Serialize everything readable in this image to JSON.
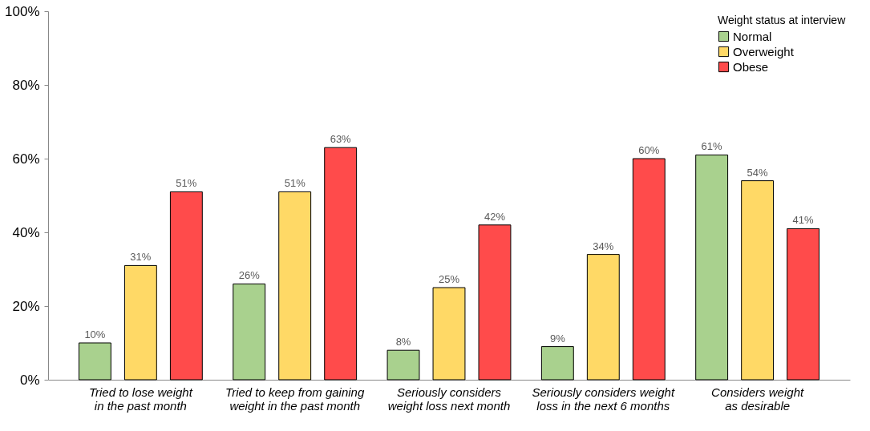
{
  "chart_data": {
    "type": "bar",
    "legend_title": "Weight status at interview",
    "legend": "top right",
    "grid": false,
    "categories": [
      "Tried to lose weight in the past month",
      "Tried to keep from gaining weight in the past month",
      "Seriously considers weight loss next month",
      "Seriously considers weight loss in the next 6 months",
      "Considers weight as desirable"
    ],
    "series": [
      {
        "name": "Normal",
        "color": "#a9d18e",
        "values": [
          10,
          26,
          8,
          9,
          61
        ],
        "value_labels": [
          "10%",
          "26%",
          "8%",
          "9%",
          "61%"
        ]
      },
      {
        "name": "Overweight",
        "color": "#ffd966",
        "values": [
          31,
          51,
          25,
          34,
          54
        ],
        "value_labels": [
          "31%",
          "51%",
          "25%",
          "34%",
          "54%"
        ]
      },
      {
        "name": "Obese",
        "color": "#ff4b4b",
        "values": [
          51,
          63,
          42,
          60,
          41
        ],
        "value_labels": [
          "51%",
          "63%",
          "42%",
          "60%",
          "41%"
        ]
      }
    ],
    "ylim": [
      0,
      100
    ],
    "yticks": [
      {
        "value": 0,
        "label": "0%"
      },
      {
        "value": 20,
        "label": "20%"
      },
      {
        "value": 40,
        "label": "40%"
      },
      {
        "value": 60,
        "label": "60%"
      },
      {
        "value": 80,
        "label": "80%"
      },
      {
        "value": 100,
        "label": "100%"
      }
    ]
  }
}
